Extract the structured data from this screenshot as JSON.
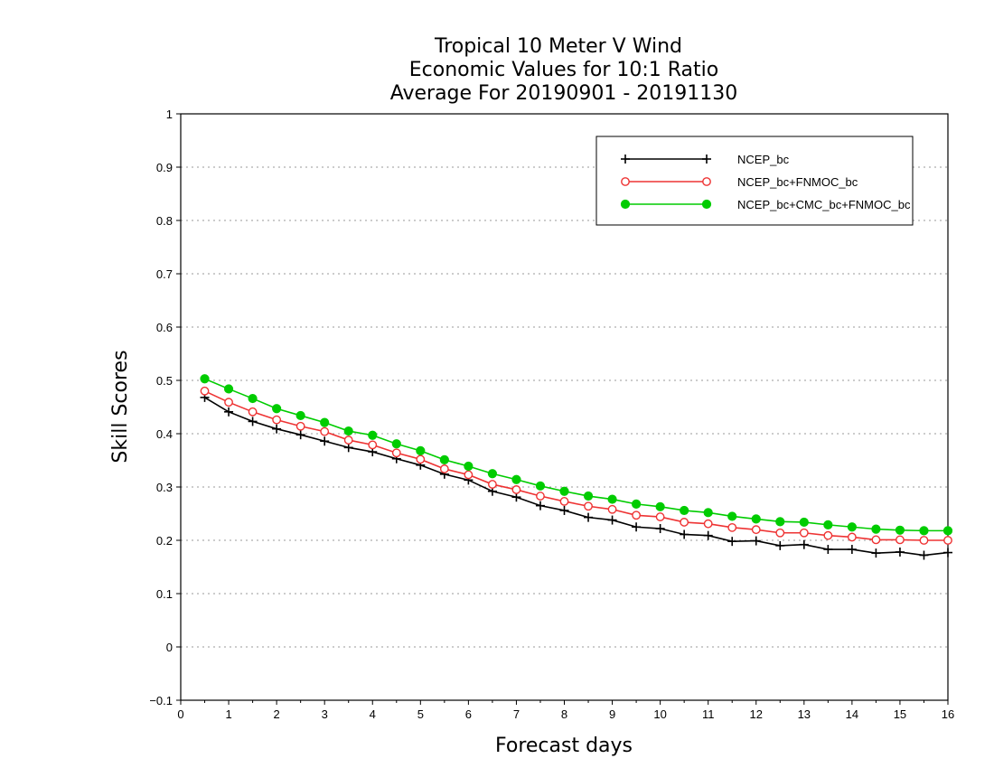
{
  "chart_data": {
    "type": "line",
    "title_lines": [
      "Tropical 10 Meter V Wind",
      "Economic Values for 10:1 Ratio",
      "Average For 20190901 - 20191130"
    ],
    "xlabel": "Forecast days",
    "ylabel": "Skill Scores",
    "xlim": [
      0,
      16
    ],
    "ylim": [
      -0.1,
      1
    ],
    "xticks": [
      "0",
      "1",
      "2",
      "3",
      "4",
      "5",
      "6",
      "7",
      "8",
      "9",
      "10",
      "11",
      "12",
      "13",
      "14",
      "15",
      "16"
    ],
    "yticks": [
      "-0.1",
      "0",
      "0.1",
      "0.2",
      "0.3",
      "0.4",
      "0.5",
      "0.6",
      "0.7",
      "0.8",
      "0.9",
      "1"
    ],
    "grid": true,
    "legend_position": "top-right",
    "x": [
      0.5,
      1,
      1.5,
      2,
      2.5,
      3,
      3.5,
      4,
      4.5,
      5,
      5.5,
      6,
      6.5,
      7,
      7.5,
      8,
      8.5,
      9,
      9.5,
      10,
      10.5,
      11,
      11.5,
      12,
      12.5,
      13,
      13.5,
      14,
      14.5,
      15,
      15.5,
      16
    ],
    "series": [
      {
        "name": "NCEP_bc",
        "color": "#000000",
        "marker": "plus",
        "values": [
          0.468,
          0.441,
          0.423,
          0.409,
          0.398,
          0.386,
          0.374,
          0.366,
          0.353,
          0.341,
          0.324,
          0.313,
          0.292,
          0.281,
          0.265,
          0.256,
          0.243,
          0.238,
          0.225,
          0.222,
          0.211,
          0.209,
          0.198,
          0.199,
          0.19,
          0.192,
          0.183,
          0.183,
          0.176,
          0.178,
          0.172,
          0.177
        ]
      },
      {
        "name": "NCEP_bc+FNMOC_bc",
        "color": "#ee3333",
        "marker": "open-circle",
        "values": [
          0.48,
          0.459,
          0.441,
          0.426,
          0.414,
          0.404,
          0.388,
          0.379,
          0.364,
          0.352,
          0.334,
          0.323,
          0.305,
          0.295,
          0.283,
          0.273,
          0.264,
          0.258,
          0.247,
          0.244,
          0.234,
          0.231,
          0.224,
          0.22,
          0.214,
          0.214,
          0.209,
          0.206,
          0.201,
          0.201,
          0.2,
          0.2
        ]
      },
      {
        "name": "NCEP_bc+CMC_bc+FNMOC_bc",
        "color": "#00cc00",
        "marker": "filled-circle",
        "values": [
          0.503,
          0.484,
          0.466,
          0.447,
          0.434,
          0.421,
          0.405,
          0.397,
          0.381,
          0.368,
          0.351,
          0.339,
          0.325,
          0.314,
          0.302,
          0.292,
          0.283,
          0.277,
          0.268,
          0.263,
          0.256,
          0.252,
          0.245,
          0.24,
          0.235,
          0.234,
          0.229,
          0.225,
          0.221,
          0.219,
          0.218,
          0.218
        ]
      }
    ]
  }
}
